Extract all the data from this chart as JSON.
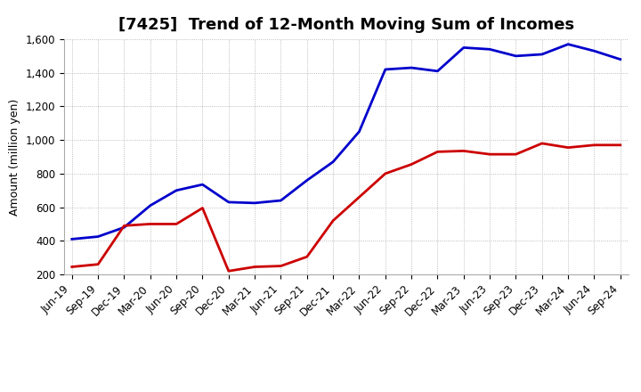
{
  "title": "[7425]  Trend of 12-Month Moving Sum of Incomes",
  "ylabel": "Amount (million yen)",
  "xlabel": "",
  "ylim": [
    200,
    1600
  ],
  "yticks": [
    200,
    400,
    600,
    800,
    1000,
    1200,
    1400,
    1600
  ],
  "ytick_labels": [
    "200",
    "400",
    "600",
    "800",
    "1,000",
    "1,200",
    "1,400",
    "1,600"
  ],
  "x_labels": [
    "Jun-19",
    "Sep-19",
    "Dec-19",
    "Mar-20",
    "Jun-20",
    "Sep-20",
    "Dec-20",
    "Mar-21",
    "Jun-21",
    "Sep-21",
    "Dec-21",
    "Mar-22",
    "Jun-22",
    "Sep-22",
    "Dec-22",
    "Mar-23",
    "Jun-23",
    "Sep-23",
    "Dec-23",
    "Mar-24",
    "Jun-24",
    "Sep-24"
  ],
  "ordinary_income": [
    410,
    425,
    480,
    610,
    700,
    735,
    630,
    625,
    640,
    760,
    870,
    1050,
    1420,
    1430,
    1410,
    1550,
    1540,
    1500,
    1510,
    1570,
    1530,
    1480
  ],
  "net_income": [
    245,
    260,
    490,
    500,
    500,
    595,
    220,
    245,
    250,
    305,
    520,
    660,
    800,
    855,
    930,
    935,
    915,
    915,
    980,
    955,
    970,
    970
  ],
  "ordinary_color": "#0000cc",
  "net_color": "#cc0000",
  "background_color": "#ffffff",
  "grid_color": "#aaaaaa",
  "title_fontsize": 13,
  "axis_fontsize": 9,
  "tick_fontsize": 8.5,
  "legend_fontsize": 10,
  "line_width": 2.0
}
